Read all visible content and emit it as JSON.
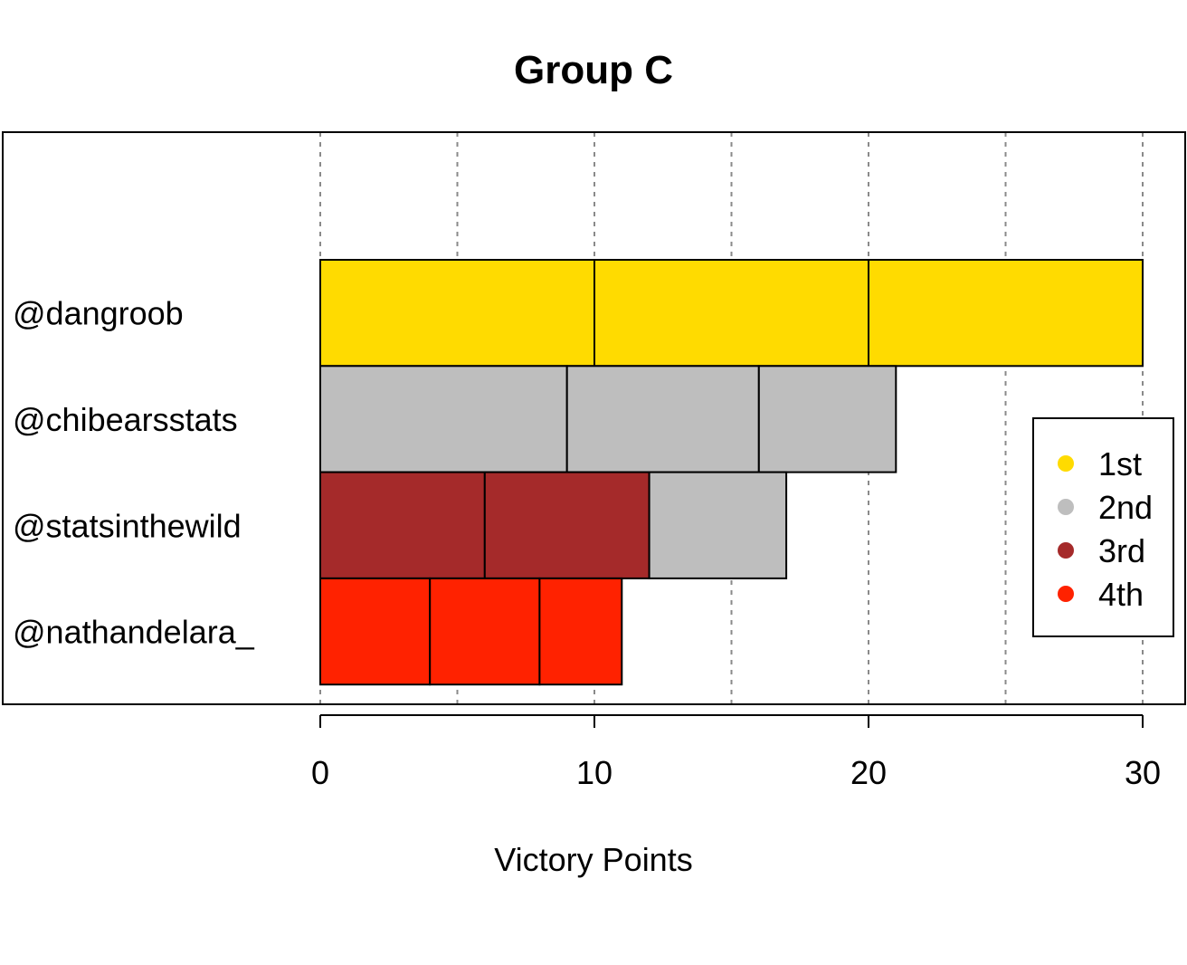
{
  "chart_data": {
    "type": "bar",
    "orientation": "horizontal",
    "stacked": true,
    "title": "Group C",
    "xlabel": "Victory Points",
    "ylabel": "",
    "xlim": [
      0,
      30
    ],
    "x_ticks": [
      0,
      10,
      20,
      30
    ],
    "grid": "vertical dotted every 5",
    "categories": [
      "@dangroob",
      "@chibearsstats",
      "@statsinthewild",
      "@nathandelara_"
    ],
    "bars": [
      {
        "category": "@dangroob",
        "segments": [
          {
            "start": 0,
            "end": 10,
            "place": "1st"
          },
          {
            "start": 10,
            "end": 20,
            "place": "1st"
          },
          {
            "start": 20,
            "end": 30,
            "place": "1st"
          }
        ]
      },
      {
        "category": "@chibearsstats",
        "segments": [
          {
            "start": 0,
            "end": 9,
            "place": "2nd"
          },
          {
            "start": 9,
            "end": 16,
            "place": "2nd"
          },
          {
            "start": 16,
            "end": 21,
            "place": "2nd"
          }
        ]
      },
      {
        "category": "@statsinthewild",
        "segments": [
          {
            "start": 0,
            "end": 6,
            "place": "3rd"
          },
          {
            "start": 6,
            "end": 12,
            "place": "3rd"
          },
          {
            "start": 12,
            "end": 17,
            "place": "2nd"
          }
        ]
      },
      {
        "category": "@nathandelara_",
        "segments": [
          {
            "start": 0,
            "end": 4,
            "place": "4th"
          },
          {
            "start": 4,
            "end": 8,
            "place": "4th"
          },
          {
            "start": 8,
            "end": 11,
            "place": "4th"
          }
        ]
      }
    ],
    "legend": {
      "position": "right",
      "entries": [
        {
          "label": "1st",
          "color": "#FFDB00"
        },
        {
          "label": "2nd",
          "color": "#BEBEBE"
        },
        {
          "label": "3rd",
          "color": "#A52A2A"
        },
        {
          "label": "4th",
          "color": "#FF2200"
        }
      ]
    }
  }
}
